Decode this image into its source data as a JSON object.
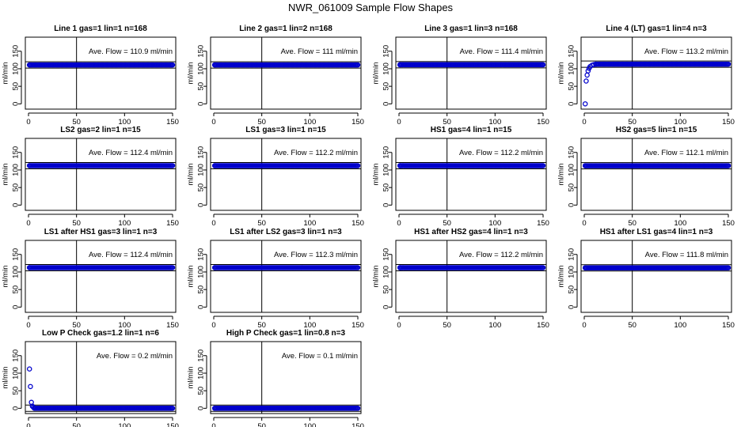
{
  "suptitle": "NWR_061009  Sample Flow Shapes",
  "chart_data": [
    {
      "type": "scatter",
      "title": "Line 1 gas=1 lin=1 n=168",
      "ylabel": "ml/min",
      "xlim": [
        0,
        150
      ],
      "ylim": [
        -15,
        190
      ],
      "xticks": [
        0,
        50,
        100,
        150
      ],
      "yticks": [
        0,
        50,
        100,
        150
      ],
      "vline": 50,
      "avg_line": 110.9,
      "annotation": "Ave. Flow =  110.9  ml/min",
      "x": [
        1,
        150
      ],
      "y": [
        110.9,
        110.9
      ]
    },
    {
      "type": "scatter",
      "title": "Line 2 gas=1 lin=2 n=168",
      "ylabel": "ml/min",
      "xlim": [
        0,
        150
      ],
      "ylim": [
        -15,
        190
      ],
      "xticks": [
        0,
        50,
        100,
        150
      ],
      "yticks": [
        0,
        50,
        100,
        150
      ],
      "vline": 50,
      "avg_line": 111,
      "annotation": "Ave. Flow =  111  ml/min",
      "x": [
        1,
        150
      ],
      "y": [
        111,
        111
      ]
    },
    {
      "type": "scatter",
      "title": "Line 3 gas=1 lin=3 n=168",
      "ylabel": "ml/min",
      "xlim": [
        0,
        150
      ],
      "ylim": [
        -15,
        190
      ],
      "xticks": [
        0,
        50,
        100,
        150
      ],
      "yticks": [
        0,
        50,
        100,
        150
      ],
      "vline": 50,
      "avg_line": 111.4,
      "annotation": "Ave. Flow =  111.4  ml/min",
      "x": [
        1,
        150
      ],
      "y": [
        111.4,
        111.4
      ]
    },
    {
      "type": "scatter",
      "title": "Line 4 (LT) gas=1 lin=4 n=3",
      "ylabel": "ml/min",
      "xlim": [
        0,
        150
      ],
      "ylim": [
        -15,
        190
      ],
      "xticks": [
        0,
        50,
        100,
        150
      ],
      "yticks": [
        0,
        50,
        100,
        150
      ],
      "vline": 50,
      "avg_line": 113.2,
      "annotation": "Ave. Flow =  113.2  ml/min",
      "x": [
        1,
        2,
        3,
        4,
        5,
        6,
        8,
        10,
        12,
        150
      ],
      "y": [
        0,
        65,
        82,
        94,
        101,
        106,
        110,
        112,
        113,
        113.2
      ]
    },
    {
      "type": "scatter",
      "title": "LS2 gas=2 lin=1 n=15",
      "ylabel": "ml/min",
      "xlim": [
        0,
        150
      ],
      "ylim": [
        -15,
        190
      ],
      "xticks": [
        0,
        50,
        100,
        150
      ],
      "yticks": [
        0,
        50,
        100,
        150
      ],
      "vline": 50,
      "avg_line": 112.4,
      "annotation": "Ave. Flow =  112.4  ml/min",
      "x": [
        1,
        150
      ],
      "y": [
        112.4,
        112.4
      ]
    },
    {
      "type": "scatter",
      "title": "LS1 gas=3 lin=1 n=15",
      "ylabel": "ml/min",
      "xlim": [
        0,
        150
      ],
      "ylim": [
        -15,
        190
      ],
      "xticks": [
        0,
        50,
        100,
        150
      ],
      "yticks": [
        0,
        50,
        100,
        150
      ],
      "vline": 50,
      "avg_line": 112.2,
      "annotation": "Ave. Flow =  112.2  ml/min",
      "x": [
        1,
        150
      ],
      "y": [
        112.2,
        112.2
      ]
    },
    {
      "type": "scatter",
      "title": "HS1 gas=4 lin=1 n=15",
      "ylabel": "ml/min",
      "xlim": [
        0,
        150
      ],
      "ylim": [
        -15,
        190
      ],
      "xticks": [
        0,
        50,
        100,
        150
      ],
      "yticks": [
        0,
        50,
        100,
        150
      ],
      "vline": 50,
      "avg_line": 112.2,
      "annotation": "Ave. Flow =  112.2  ml/min",
      "x": [
        1,
        150
      ],
      "y": [
        112.2,
        112.2
      ]
    },
    {
      "type": "scatter",
      "title": "HS2 gas=5 lin=1 n=15",
      "ylabel": "ml/min",
      "xlim": [
        0,
        150
      ],
      "ylim": [
        -15,
        190
      ],
      "xticks": [
        0,
        50,
        100,
        150
      ],
      "yticks": [
        0,
        50,
        100,
        150
      ],
      "vline": 50,
      "avg_line": 112.1,
      "annotation": "Ave. Flow =  112.1  ml/min",
      "x": [
        1,
        150
      ],
      "y": [
        112.1,
        112.1
      ]
    },
    {
      "type": "scatter",
      "title": "LS1 after HS1 gas=3 lin=1 n=3",
      "ylabel": "ml/min",
      "xlim": [
        0,
        150
      ],
      "ylim": [
        -15,
        190
      ],
      "xticks": [
        0,
        50,
        100,
        150
      ],
      "yticks": [
        0,
        50,
        100,
        150
      ],
      "vline": 50,
      "avg_line": 112.4,
      "annotation": "Ave. Flow =  112.4  ml/min",
      "x": [
        1,
        150
      ],
      "y": [
        112.4,
        112.4
      ]
    },
    {
      "type": "scatter",
      "title": "LS1 after LS2 gas=3 lin=1 n=3",
      "ylabel": "ml/min",
      "xlim": [
        0,
        150
      ],
      "ylim": [
        -15,
        190
      ],
      "xticks": [
        0,
        50,
        100,
        150
      ],
      "yticks": [
        0,
        50,
        100,
        150
      ],
      "vline": 50,
      "avg_line": 112.3,
      "annotation": "Ave. Flow =  112.3  ml/min",
      "x": [
        1,
        150
      ],
      "y": [
        112.3,
        112.3
      ]
    },
    {
      "type": "scatter",
      "title": "HS1 after HS2 gas=4 lin=1 n=3",
      "ylabel": "ml/min",
      "xlim": [
        0,
        150
      ],
      "ylim": [
        -15,
        190
      ],
      "xticks": [
        0,
        50,
        100,
        150
      ],
      "yticks": [
        0,
        50,
        100,
        150
      ],
      "vline": 50,
      "avg_line": 112.2,
      "annotation": "Ave. Flow =  112.2  ml/min",
      "x": [
        1,
        150
      ],
      "y": [
        112.2,
        112.2
      ]
    },
    {
      "type": "scatter",
      "title": "HS1 after LS1 gas=4 lin=1 n=3",
      "ylabel": "ml/min",
      "xlim": [
        0,
        150
      ],
      "ylim": [
        -15,
        190
      ],
      "xticks": [
        0,
        50,
        100,
        150
      ],
      "yticks": [
        0,
        50,
        100,
        150
      ],
      "vline": 50,
      "avg_line": 111.8,
      "annotation": "Ave. Flow =  111.8  ml/min",
      "x": [
        1,
        150
      ],
      "y": [
        111.8,
        111.8
      ]
    },
    {
      "type": "scatter",
      "title": "Low P Check gas=1.2 lin=1 n=6",
      "ylabel": "ml/min",
      "xlim": [
        0,
        150
      ],
      "ylim": [
        -15,
        190
      ],
      "xticks": [
        0,
        50,
        100,
        150
      ],
      "yticks": [
        0,
        50,
        100,
        150
      ],
      "vline": 50,
      "avg_line": 0.2,
      "annotation": "Ave. Flow =  0.2  ml/min",
      "x": [
        1,
        2,
        3,
        4,
        5,
        6,
        150
      ],
      "y": [
        112,
        62,
        17,
        6,
        3,
        1,
        0.2
      ]
    },
    {
      "type": "scatter",
      "title": "High P Check gas=1 lin=0.8 n=3",
      "ylabel": "ml/min",
      "xlim": [
        0,
        150
      ],
      "ylim": [
        -15,
        190
      ],
      "xticks": [
        0,
        50,
        100,
        150
      ],
      "yticks": [
        0,
        50,
        100,
        150
      ],
      "vline": 50,
      "avg_line": 0.1,
      "annotation": "Ave. Flow =  0.1  ml/min",
      "x": [
        1,
        150
      ],
      "y": [
        0.1,
        0.1
      ]
    }
  ]
}
